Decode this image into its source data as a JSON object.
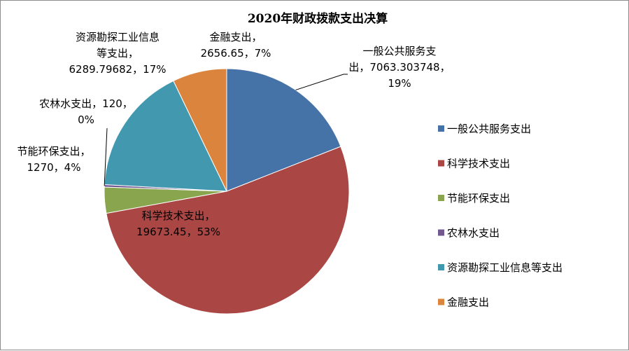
{
  "chart_data": {
    "type": "pie",
    "title": "2020年财政拨款支出决算",
    "start_angle_deg": 0,
    "direction": "clockwise",
    "legend_position": "right",
    "slices": [
      {
        "name": "一般公共服务支出",
        "value": 7063.303748,
        "percent": "19%",
        "color": "#4572a7",
        "label_lines": [
          "一般公共服务支",
          "出，7063.303748，",
          "19%"
        ]
      },
      {
        "name": "科学技术支出",
        "value": 19673.45,
        "percent": "53%",
        "color": "#aa4643",
        "label_lines": [
          "科学技术支出，",
          "19673.45，53%"
        ]
      },
      {
        "name": "节能环保支出",
        "value": 1270,
        "percent": "4%",
        "color": "#89a54e",
        "label_lines": [
          "节能环保支出，",
          "1270，4%"
        ]
      },
      {
        "name": "农林水支出",
        "value": 120,
        "percent": "0%",
        "color": "#71588f",
        "label_lines": [
          "农林水支出，120，",
          "0%"
        ]
      },
      {
        "name": "资源勘探工业信息等支出",
        "value": 6289.79682,
        "percent": "17%",
        "color": "#4198af",
        "label_lines": [
          "资源勘探工业信息",
          "等支出，",
          "6289.79682，17%"
        ]
      },
      {
        "name": "金融支出",
        "value": 2656.65,
        "percent": "7%",
        "color": "#db843d",
        "label_lines": [
          "金融支出，",
          "2656.65，7%"
        ]
      }
    ]
  }
}
